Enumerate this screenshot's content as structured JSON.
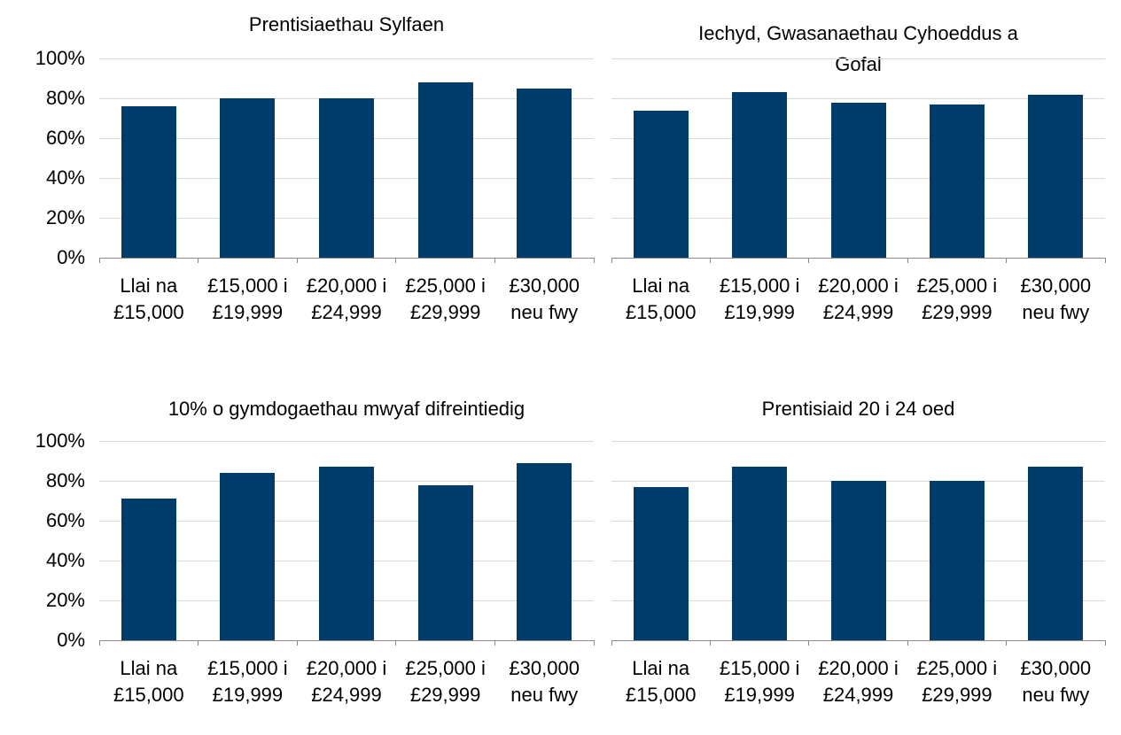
{
  "chart_data": [
    {
      "type": "bar",
      "title": "Prentisiaethau Sylfaen",
      "categories": [
        "Llai na £15,000",
        "£15,000 i £19,999",
        "£20,000 i £24,999",
        "£25,000 i £29,999",
        "£30,000 neu fwy"
      ],
      "values": [
        76,
        80,
        80,
        88,
        85
      ],
      "color": "#003c69",
      "ylim": [
        0,
        100
      ],
      "yticks": [
        {
          "value": 0,
          "label": "0%"
        },
        {
          "value": 20,
          "label": "20%"
        },
        {
          "value": 40,
          "label": "40%"
        },
        {
          "value": 60,
          "label": "60%"
        },
        {
          "value": 80,
          "label": "80%"
        },
        {
          "value": 100,
          "label": "100%"
        }
      ],
      "grid": true
    },
    {
      "type": "bar",
      "title": "Iechyd, Gwasanaethau Cyhoeddus a Gofal",
      "categories": [
        "Llai na £15,000",
        "£15,000 i £19,999",
        "£20,000 i £24,999",
        "£25,000 i £29,999",
        "£30,000 neu fwy"
      ],
      "values": [
        74,
        83,
        78,
        77,
        82
      ],
      "color": "#003c69",
      "ylim": [
        0,
        100
      ],
      "yticks": [
        {
          "value": 0,
          "label": "0%"
        },
        {
          "value": 20,
          "label": "20%"
        },
        {
          "value": 40,
          "label": "40%"
        },
        {
          "value": 60,
          "label": "60%"
        },
        {
          "value": 80,
          "label": "80%"
        },
        {
          "value": 100,
          "label": "100%"
        }
      ],
      "grid": true
    },
    {
      "type": "bar",
      "title": "10% o gymdogaethau mwyaf difreintiedig",
      "categories": [
        "Llai na £15,000",
        "£15,000 i £19,999",
        "£20,000 i £24,999",
        "£25,000 i £29,999",
        "£30,000 neu fwy"
      ],
      "values": [
        71,
        84,
        87,
        78,
        89
      ],
      "color": "#003c69",
      "ylim": [
        0,
        100
      ],
      "yticks": [
        {
          "value": 0,
          "label": "0%"
        },
        {
          "value": 20,
          "label": "20%"
        },
        {
          "value": 40,
          "label": "40%"
        },
        {
          "value": 60,
          "label": "60%"
        },
        {
          "value": 80,
          "label": "80%"
        },
        {
          "value": 100,
          "label": "100%"
        }
      ],
      "grid": true
    },
    {
      "type": "bar",
      "title": "Prentisiaid 20 i 24 oed",
      "categories": [
        "Llai na £15,000",
        "£15,000 i £19,999",
        "£20,000 i £24,999",
        "£25,000 i £29,999",
        "£30,000 neu fwy"
      ],
      "values": [
        77,
        87,
        80,
        80,
        87
      ],
      "color": "#003c69",
      "ylim": [
        0,
        100
      ],
      "yticks": [
        {
          "value": 0,
          "label": "0%"
        },
        {
          "value": 20,
          "label": "20%"
        },
        {
          "value": 40,
          "label": "40%"
        },
        {
          "value": 60,
          "label": "60%"
        },
        {
          "value": 80,
          "label": "80%"
        },
        {
          "value": 100,
          "label": "100%"
        }
      ],
      "grid": true
    }
  ]
}
